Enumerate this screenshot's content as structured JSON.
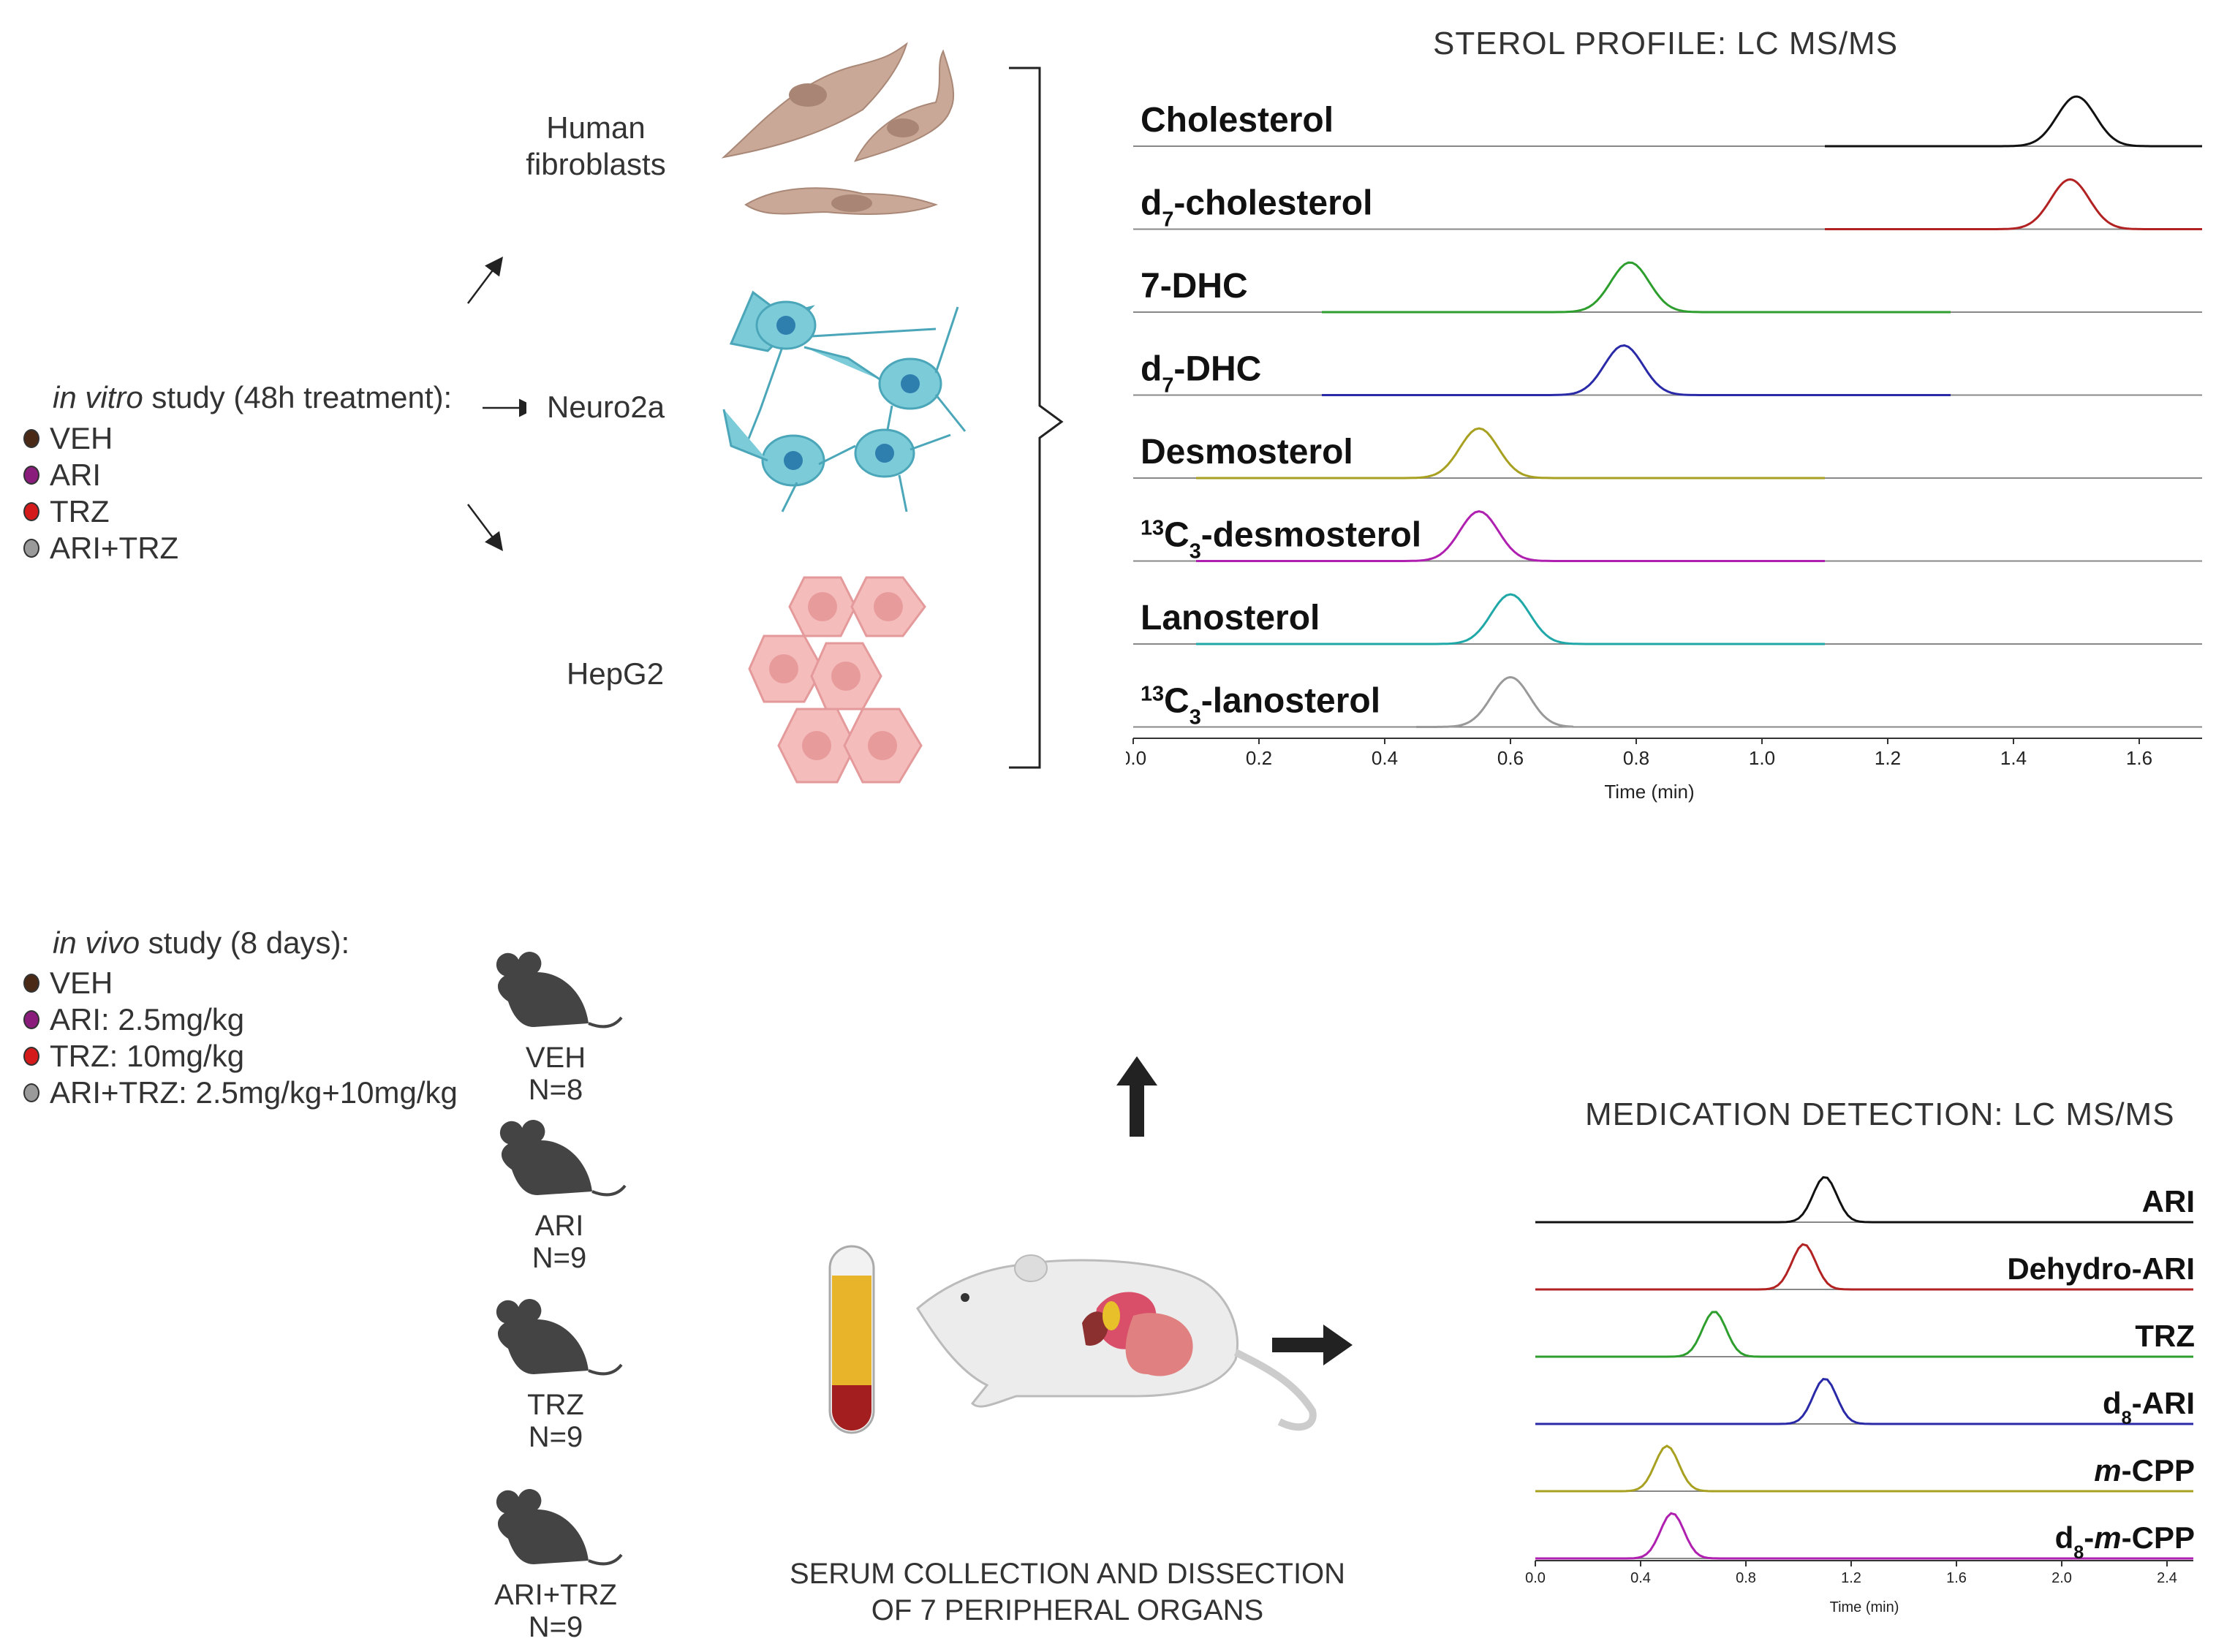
{
  "in_vitro": {
    "title_italic": "in vitro",
    "title_rest": " study (48h treatment):",
    "groups": [
      {
        "label": "VEH",
        "color": "#4a2a17"
      },
      {
        "label": "ARI",
        "color": "#8a1c7c"
      },
      {
        "label": "TRZ",
        "color": "#d41a1a"
      },
      {
        "label": "ARI+TRZ",
        "color": "#9a9a9a"
      }
    ],
    "cells": {
      "fibroblasts": "Human\nfibroblasts",
      "neuro": "Neuro2a",
      "hepg2": "HepG2"
    }
  },
  "in_vivo": {
    "title_italic": "in vivo",
    "title_rest": " study (8 days):",
    "groups": [
      {
        "label": "VEH",
        "color": "#4a2a17"
      },
      {
        "label": "ARI: 2.5mg/kg",
        "color": "#8a1c7c"
      },
      {
        "label": "TRZ: 10mg/kg",
        "color": "#d41a1a"
      },
      {
        "label": "ARI+TRZ: 2.5mg/kg+10mg/kg",
        "color": "#9a9a9a"
      }
    ],
    "mice": [
      {
        "name": "VEH",
        "n": "N=8"
      },
      {
        "name": "ARI",
        "n": "N=9"
      },
      {
        "name": "TRZ",
        "n": "N=9"
      },
      {
        "name": "ARI+TRZ",
        "n": "N=9"
      }
    ],
    "collection_line1": "SERUM COLLECTION AND DISSECTION",
    "collection_line2": "OF 7 PERIPHERAL ORGANS"
  },
  "colors": {
    "fibro": "#c9a898",
    "neuro": "#7ccbd9",
    "hepg2": "#f5bcbc",
    "mouse": "#444444"
  },
  "chart_data": [
    {
      "type": "line",
      "title": "STEROL PROFILE: LC MS/MS",
      "xlabel": "Time (min)",
      "xlim": [
        0.0,
        1.7
      ],
      "xticks": [
        "0.0",
        "0.2",
        "0.4",
        "0.6",
        "0.8",
        "1.0",
        "1.2",
        "1.4",
        "1.6"
      ],
      "series": [
        {
          "name": "Cholesterol",
          "label_parts": [
            [
              "Cholesterol",
              ""
            ]
          ],
          "color": "#111111",
          "peak": 1.5,
          "start": 1.1,
          "end": 1.7
        },
        {
          "name": "d7-cholesterol",
          "label_parts": [
            [
              "d",
              ""
            ],
            [
              "7",
              "sub"
            ],
            [
              "-cholesterol",
              ""
            ]
          ],
          "color": "#b22222",
          "peak": 1.49,
          "start": 1.1,
          "end": 1.7
        },
        {
          "name": "7-DHC",
          "label_parts": [
            [
              "7-DHC",
              ""
            ]
          ],
          "color": "#2e9e2e",
          "peak": 0.79,
          "start": 0.3,
          "end": 1.3
        },
        {
          "name": "d7-DHC",
          "label_parts": [
            [
              "d",
              ""
            ],
            [
              "7",
              "sub"
            ],
            [
              "-DHC",
              ""
            ]
          ],
          "color": "#2a2aa8",
          "peak": 0.78,
          "start": 0.3,
          "end": 1.3
        },
        {
          "name": "Desmosterol",
          "label_parts": [
            [
              "Desmosterol",
              ""
            ]
          ],
          "color": "#a8a020",
          "peak": 0.55,
          "start": 0.1,
          "end": 1.1
        },
        {
          "name": "13C3-desmosterol",
          "label_parts": [
            [
              "13",
              "sup"
            ],
            [
              "C",
              ""
            ],
            [
              "3",
              "sub"
            ],
            [
              "-desmosterol",
              ""
            ]
          ],
          "color": "#b020b0",
          "peak": 0.55,
          "start": 0.1,
          "end": 1.1
        },
        {
          "name": "Lanosterol",
          "label_parts": [
            [
              "Lanosterol",
              ""
            ]
          ],
          "color": "#20a8a8",
          "peak": 0.6,
          "start": 0.1,
          "end": 1.1
        },
        {
          "name": "13C3-lanosterol",
          "label_parts": [
            [
              "13",
              "sup"
            ],
            [
              "C",
              ""
            ],
            [
              "3",
              "sub"
            ],
            [
              "-lanosterol",
              ""
            ]
          ],
          "color": "#999999",
          "peak": 0.6,
          "start": 0.45,
          "end": 0.7
        }
      ]
    },
    {
      "type": "line",
      "title": "MEDICATION DETECTION: LC MS/MS",
      "xlabel": "Time (min)",
      "xlim": [
        0.0,
        2.5
      ],
      "xticks": [
        "0.0",
        "0.4",
        "0.8",
        "1.2",
        "1.6",
        "2.0",
        "2.4"
      ],
      "series": [
        {
          "name": "ARI",
          "label_parts": [
            [
              "ARI",
              ""
            ]
          ],
          "color": "#111111",
          "peak": 1.1,
          "start": 0.0,
          "end": 2.5
        },
        {
          "name": "Dehydro-ARI",
          "label_parts": [
            [
              "Dehydro-ARI",
              ""
            ]
          ],
          "color": "#b22222",
          "peak": 1.02,
          "start": 0.0,
          "end": 2.5
        },
        {
          "name": "TRZ",
          "label_parts": [
            [
              "TRZ",
              ""
            ]
          ],
          "color": "#2e9e2e",
          "peak": 0.68,
          "start": 0.0,
          "end": 2.5
        },
        {
          "name": "d8-ARI",
          "label_parts": [
            [
              "d",
              ""
            ],
            [
              "8",
              "sub"
            ],
            [
              "-ARI",
              ""
            ]
          ],
          "color": "#2a2aa8",
          "peak": 1.1,
          "start": 0.0,
          "end": 2.5
        },
        {
          "name": "m-CPP",
          "label_parts": [
            [
              "m",
              "i"
            ],
            [
              "-CPP",
              ""
            ]
          ],
          "color": "#a8a020",
          "peak": 0.5,
          "start": 0.0,
          "end": 2.5
        },
        {
          "name": "d8-m-CPP",
          "label_parts": [
            [
              "d",
              ""
            ],
            [
              "8",
              "sub"
            ],
            [
              "-",
              ""
            ],
            [
              "m",
              "i"
            ],
            [
              "-CPP",
              ""
            ]
          ],
          "color": "#b020b0",
          "peak": 0.52,
          "start": 0.0,
          "end": 2.5
        }
      ]
    }
  ]
}
